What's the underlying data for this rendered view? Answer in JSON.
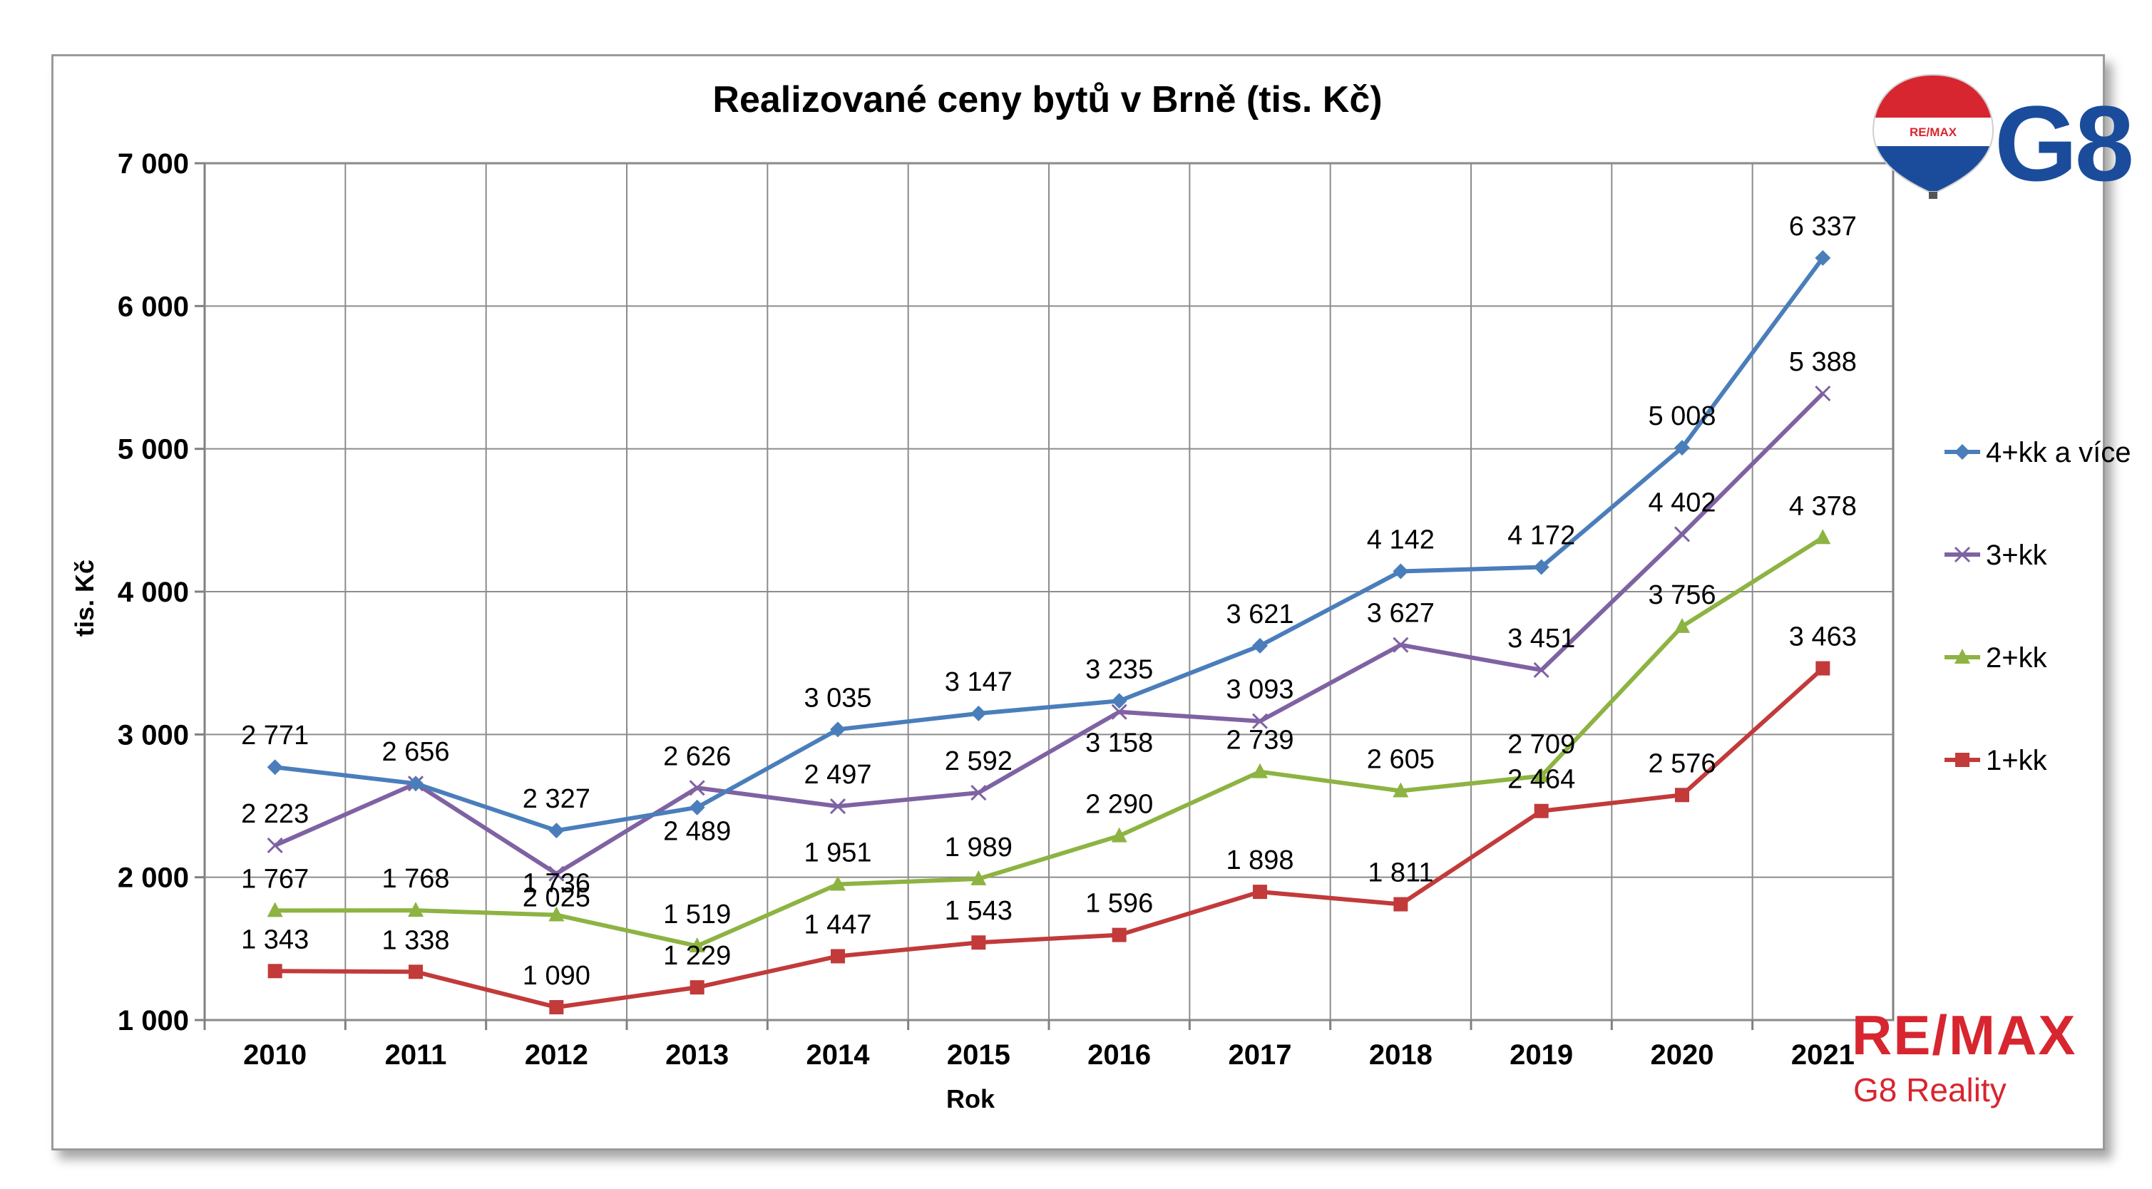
{
  "chart_data": {
    "type": "line",
    "title": "Realizované ceny bytů v Brně (tis. Kč)",
    "xlabel": "Rok",
    "ylabel": "tis. Kč",
    "categories": [
      "2010",
      "2011",
      "2012",
      "2013",
      "2014",
      "2015",
      "2016",
      "2017",
      "2018",
      "2019",
      "2020",
      "2021"
    ],
    "ylim": [
      1000,
      7000
    ],
    "yticks": [
      1000,
      2000,
      3000,
      4000,
      5000,
      6000,
      7000
    ],
    "ytick_labels": [
      "1 000",
      "2 000",
      "3 000",
      "4 000",
      "5 000",
      "6 000",
      "7 000"
    ],
    "grid": true,
    "legend_position": "right",
    "series": [
      {
        "name": "4+kk a více",
        "color": "#4a7ebb",
        "marker": "diamond",
        "values": [
          2771,
          2656,
          2327,
          2489,
          3035,
          3147,
          3235,
          3621,
          4142,
          4172,
          5008,
          6337
        ],
        "labels": [
          "2 771",
          "2 656",
          "2 327",
          "2 489",
          "3 035",
          "3 147",
          "3 235",
          "3 621",
          "4 142",
          "4 172",
          "5 008",
          "6 337"
        ]
      },
      {
        "name": "3+kk",
        "color": "#7f62a3",
        "marker": "x",
        "values": [
          2223,
          2656,
          2025,
          2626,
          2497,
          2592,
          3158,
          3093,
          3627,
          3451,
          4402,
          5388
        ],
        "labels": [
          "2 223",
          "",
          "2 025",
          "2 626",
          "2 497",
          "2 592",
          "3 158",
          "3 093",
          "3 627",
          "3 451",
          "4 402",
          "5 388"
        ]
      },
      {
        "name": "2+kk",
        "color": "#8db342",
        "marker": "triangle",
        "values": [
          1767,
          1768,
          1736,
          1519,
          1951,
          1989,
          2290,
          2739,
          2605,
          2709,
          3756,
          4378
        ],
        "labels": [
          "1 767",
          "1 768",
          "1 736",
          "1 519",
          "1 951",
          "1 989",
          "2 290",
          "2 739",
          "2 605",
          "2 709",
          "3 756",
          "4 378"
        ]
      },
      {
        "name": "1+kk",
        "color": "#c23a3a",
        "marker": "square",
        "values": [
          1343,
          1338,
          1090,
          1229,
          1447,
          1543,
          1596,
          1898,
          1811,
          2464,
          2576,
          3463
        ],
        "labels": [
          "1 343",
          "1 338",
          "1 090",
          "1 229",
          "1 447",
          "1 543",
          "1 596",
          "1 898",
          "1 811",
          "2 464",
          "2 576",
          "3 463"
        ]
      }
    ]
  },
  "branding": {
    "top_logo_letters": "G8",
    "balloon_text": "RE/MAX",
    "bottom_logo_text": "RE/MAX",
    "bottom_logo_subtext": "G8 Reality",
    "brand_red": "#d7262f",
    "brand_blue": "#1b4c9c"
  }
}
